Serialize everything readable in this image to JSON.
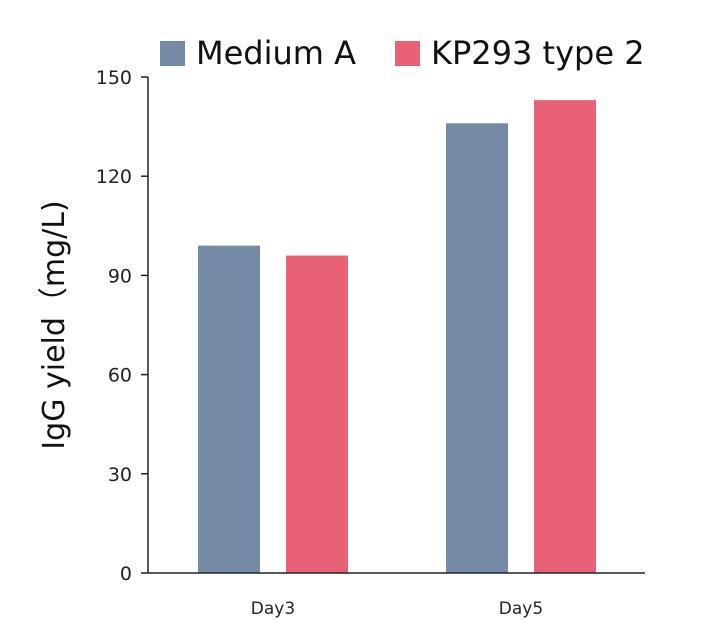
{
  "chart_data": {
    "type": "bar",
    "title": "",
    "xlabel": "",
    "ylabel": "IgG yield（mg/L)",
    "ylim": [
      0,
      150
    ],
    "yticks": [
      0,
      30,
      60,
      90,
      120,
      150
    ],
    "categories": [
      "Day3",
      "Day5"
    ],
    "series": [
      {
        "name": "Medium A",
        "color": "#748ba6",
        "values": [
          99,
          136
        ]
      },
      {
        "name": "KP293 type 2",
        "color": "#e86174",
        "values": [
          96,
          143
        ]
      }
    ],
    "grid": false,
    "legend_position": "top"
  }
}
